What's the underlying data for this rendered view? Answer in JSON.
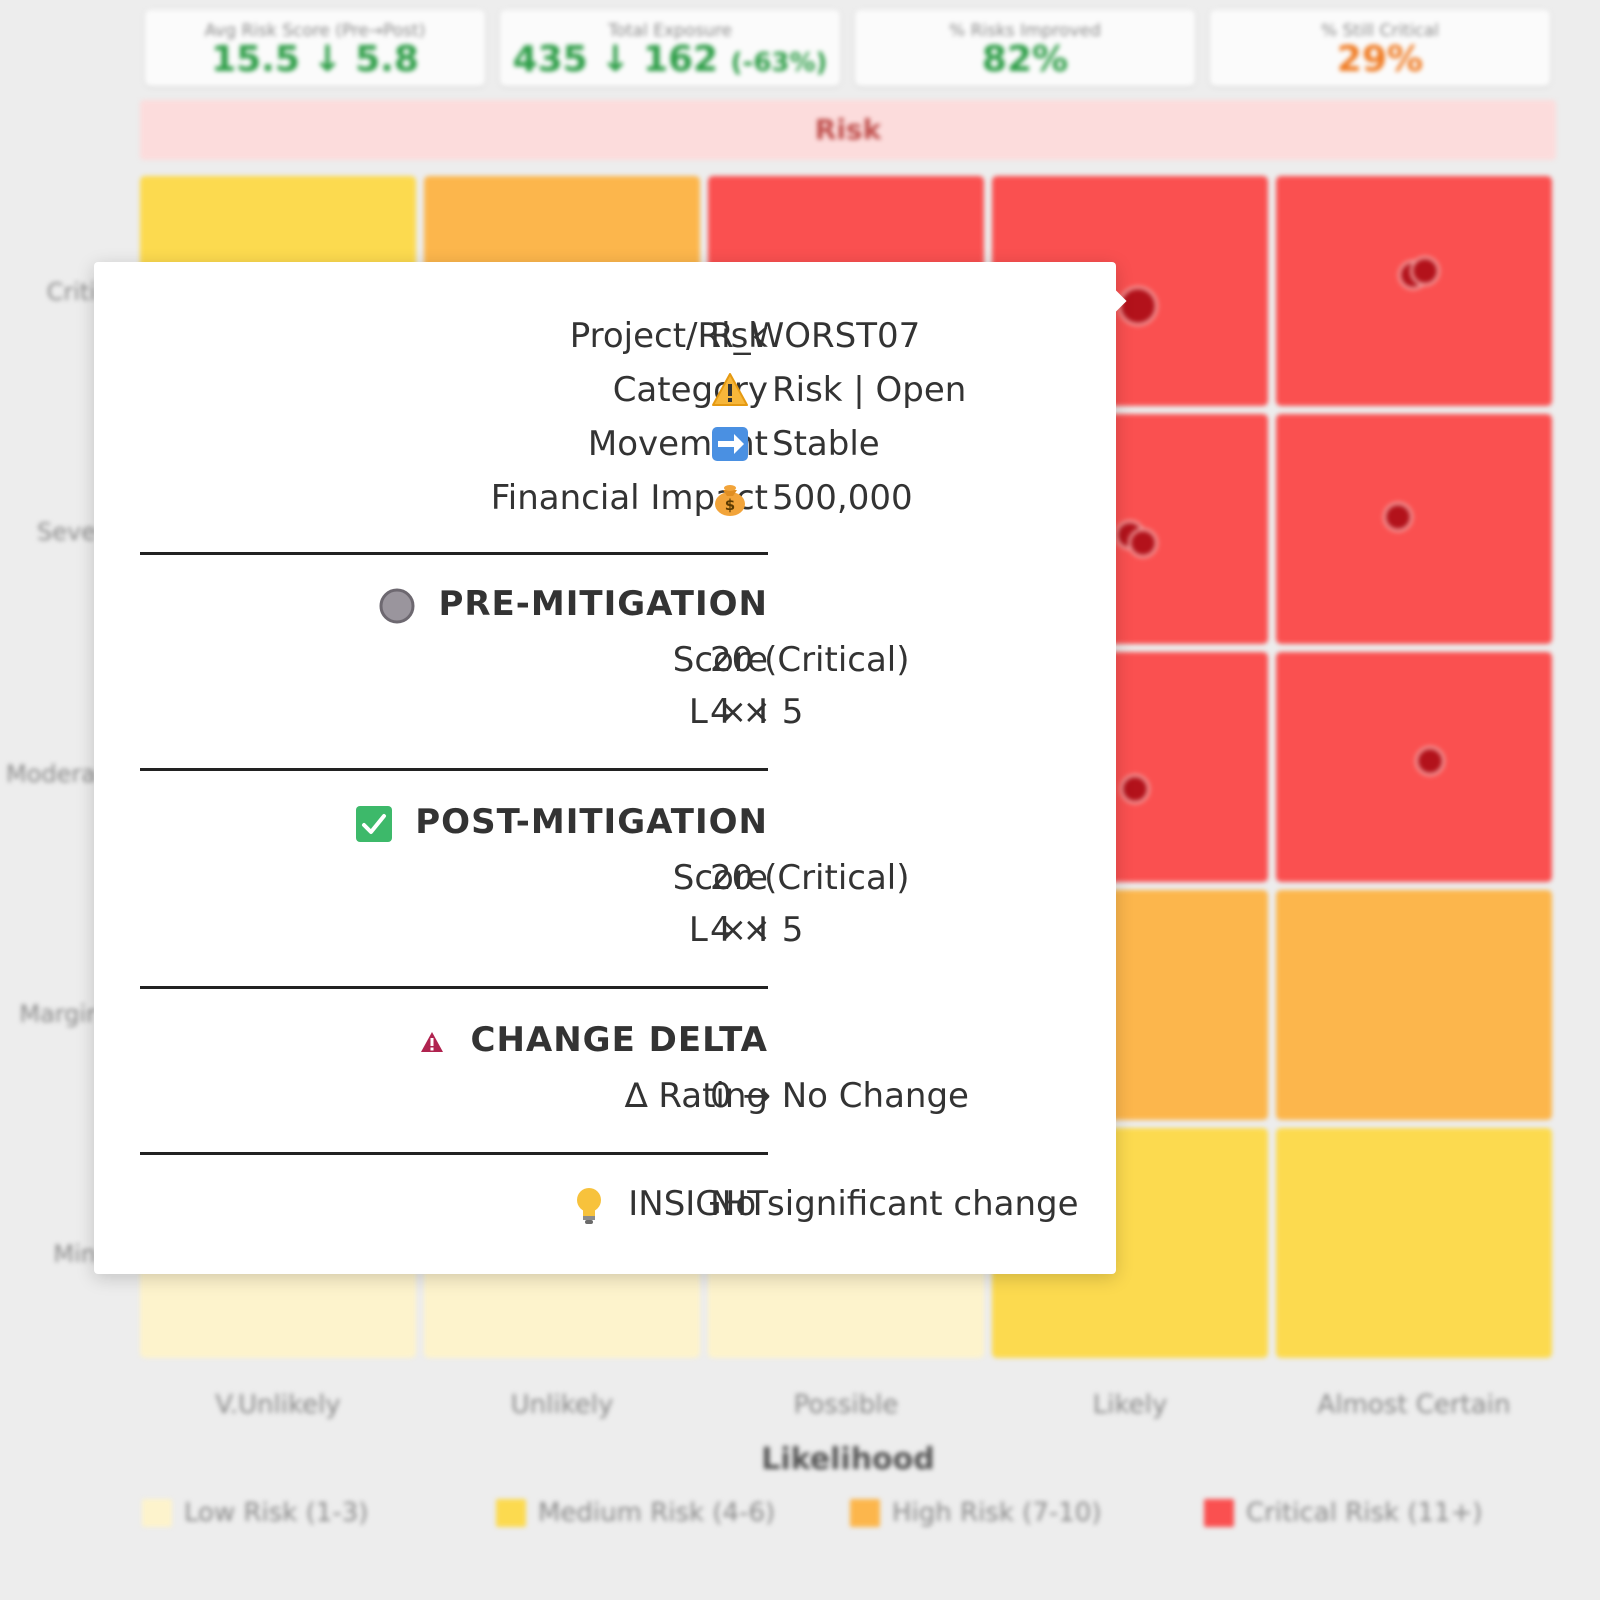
{
  "kpis": [
    {
      "label": "Avg Risk Score (Pre→Post)",
      "value": "15.5 ↓ 5.8",
      "color": "#2e9e48"
    },
    {
      "label": "Total Exposure",
      "value": "435 ↓ 162",
      "suffix": "(-63%)",
      "color": "#2e9e48"
    },
    {
      "label": "% Risks Improved",
      "value": "82%",
      "color": "#2e9e48"
    },
    {
      "label": "% Still Critical",
      "value": "29%",
      "color": "#f07c24"
    }
  ],
  "matrix": {
    "title": "Risk",
    "impact_labels": [
      "Criti",
      "Seve",
      "Modera",
      "Margir",
      "Min"
    ],
    "likelihood_labels": [
      "V.Unlikely",
      "Unlikely",
      "Possible",
      "Likely",
      "Almost Certain"
    ],
    "likelihood_title": "Likelihood",
    "colors": {
      "low": "#fdf3cc",
      "medium": "#fcda4f",
      "high": "#fcb64c",
      "critical": "#fa5050"
    }
  },
  "legend": [
    {
      "label": "Low Risk (1-3)",
      "color": "#fdf3cc"
    },
    {
      "label": "Medium Risk (4-6)",
      "color": "#fcda4f"
    },
    {
      "label": "High Risk (7-10)",
      "color": "#fcb64c"
    },
    {
      "label": "Critical Risk (11+)",
      "color": "#fa5050"
    }
  ],
  "tooltip": {
    "project_label": "Project/Risk",
    "project_value": "R_WORST07",
    "category_label": "Category",
    "category_value": "Risk | Open",
    "category_icon": "warning-icon",
    "movement_label": "Movement",
    "movement_value": "Stable",
    "movement_icon": "right-arrow-icon",
    "financial_label": "Financial Impact",
    "financial_value": "500,000",
    "financial_icon": "money-bag-icon",
    "pre": {
      "heading": "PRE-MITIGATION",
      "icon": "grey-circle-icon",
      "score_label": "Score",
      "score_value": "20 (Critical)",
      "lxi_label": "L × I",
      "lxi_value": "4 × 5"
    },
    "post": {
      "heading": "POST-MITIGATION",
      "icon": "check-box-icon",
      "score_label": "Score",
      "score_value": "20 (Critical)",
      "lxi_label": "L × I",
      "lxi_value": "4 × 5"
    },
    "delta": {
      "heading": "CHANGE DELTA",
      "icon": "warning-triangle-icon",
      "rating_label": "∆ Rating",
      "rating_value": "0 → No Change"
    },
    "insight": {
      "label": "INSIGHT",
      "icon": "lightbulb-icon",
      "value": "No significant change"
    }
  }
}
